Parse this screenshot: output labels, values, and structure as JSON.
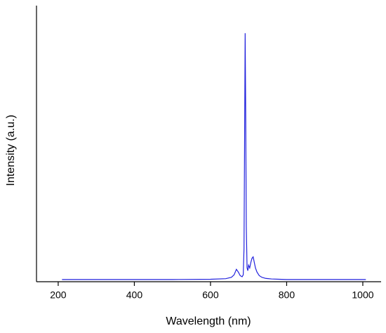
{
  "chart_data": {
    "type": "line",
    "xlabel": "Wavelength (nm)",
    "ylabel": "Intensity (a.u.)",
    "x": [
      210,
      300,
      400,
      500,
      600,
      640,
      655,
      662,
      668,
      673,
      678,
      683,
      686,
      688,
      689.5,
      691,
      692.5,
      694,
      696,
      698,
      700,
      703,
      706,
      709,
      712,
      715,
      718,
      722,
      728,
      735,
      745,
      760,
      780,
      800,
      900,
      1008
    ],
    "series": [
      {
        "color": "#2222dd",
        "values": [
          0.008,
          0.008,
          0.008,
          0.008,
          0.009,
          0.011,
          0.016,
          0.025,
          0.045,
          0.035,
          0.022,
          0.018,
          0.025,
          0.12,
          0.5,
          0.9,
          0.6,
          0.2,
          0.05,
          0.04,
          0.06,
          0.05,
          0.07,
          0.085,
          0.09,
          0.07,
          0.05,
          0.035,
          0.022,
          0.016,
          0.012,
          0.01,
          0.009,
          0.008,
          0.008,
          0.008
        ]
      }
    ],
    "xlim": [
      143,
      1048
    ],
    "ylim": [
      0,
      1
    ],
    "xticks": [
      200,
      400,
      600,
      800,
      1000
    ]
  }
}
